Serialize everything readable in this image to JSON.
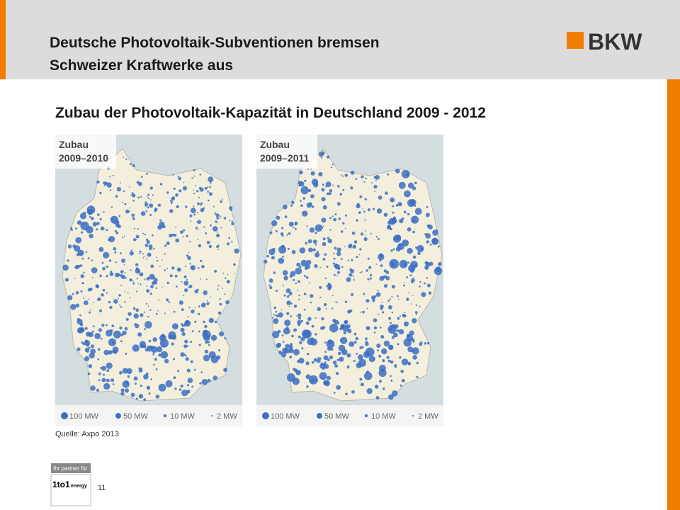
{
  "header": {
    "title_lines": [
      "Deutsche Photovoltaik-Subventionen bremsen",
      "Schweizer Kraftwerke aus"
    ],
    "logo": "BKW"
  },
  "subtitle": "Zubau der Photovoltaik-Kapazität in Deutschland 2009 - 2012",
  "maps": [
    {
      "label_lines": [
        "Zubau",
        "2009–2010"
      ],
      "legend": [
        "100 MW",
        "50 MW",
        "10 MW",
        "2 MW"
      ]
    },
    {
      "label_lines": [
        "Zubau",
        "2009–2011"
      ],
      "legend": [
        "100 MW",
        "50 MW",
        "10 MW",
        "2 MW"
      ]
    }
  ],
  "source": "Quelle: Axpo 2013",
  "partner": {
    "caption": "Ihr partner für",
    "name": "1to1",
    "suffix": "energy"
  },
  "page_number": "11"
}
